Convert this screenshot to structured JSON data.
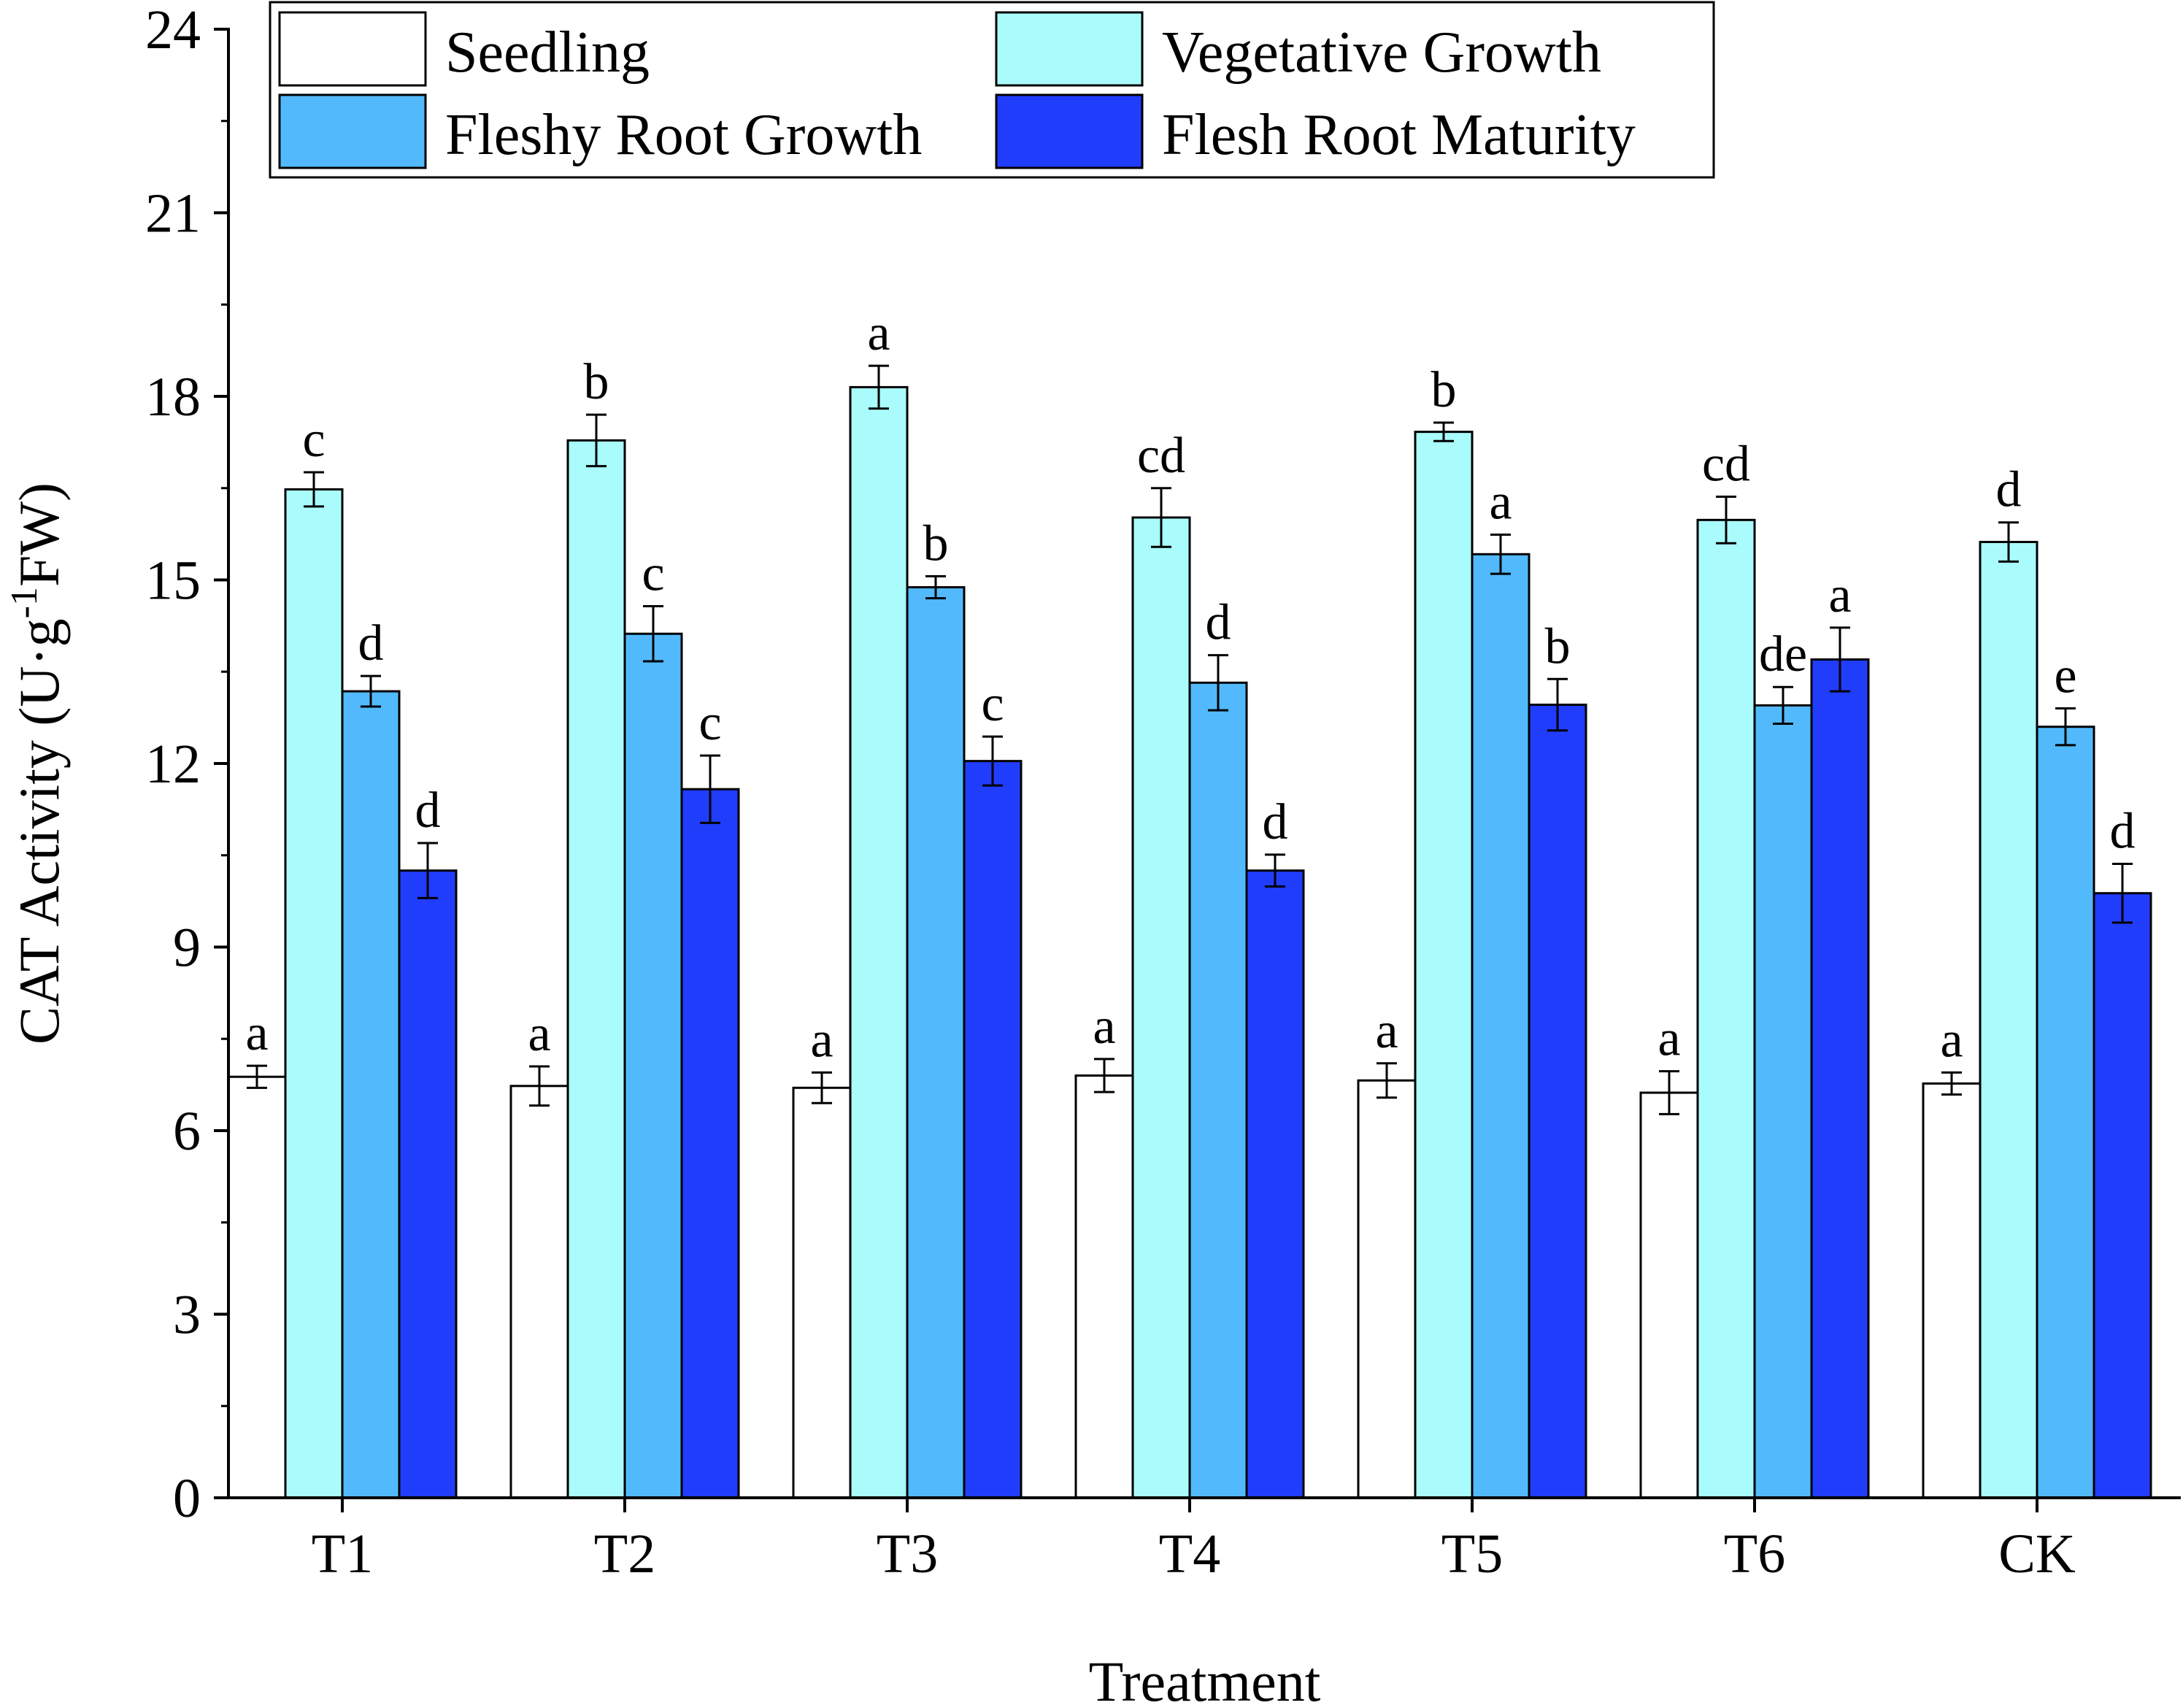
{
  "chart_data": {
    "type": "bar",
    "title": "",
    "xlabel": "Treatment",
    "ylabel": {
      "main": "CAT Activity (U·g",
      "superscript": "-1",
      "tail": "FW)"
    },
    "ylim": [
      0,
      24
    ],
    "yticks": [
      "0",
      "3",
      "6",
      "9",
      "12",
      "15",
      "18",
      "21",
      "24"
    ],
    "categories": [
      "T1",
      "T2",
      "T3",
      "T4",
      "T5",
      "T6",
      "CK"
    ],
    "legend_position": "top",
    "series": [
      {
        "name": "Seedling",
        "color": "#ffffff",
        "values": [
          6.88,
          6.73,
          6.7,
          6.9,
          6.82,
          6.62,
          6.77
        ],
        "errors": [
          0.18,
          0.32,
          0.25,
          0.27,
          0.28,
          0.35,
          0.18
        ],
        "labels": [
          "a",
          "a",
          "a",
          "a",
          "a",
          "a",
          "a"
        ]
      },
      {
        "name": "Vegetative Growth",
        "color": "#aafcfc",
        "values": [
          16.48,
          17.28,
          18.15,
          16.02,
          17.42,
          15.98,
          15.62
        ],
        "errors": [
          0.28,
          0.42,
          0.35,
          0.48,
          0.15,
          0.38,
          0.32
        ],
        "labels": [
          "c",
          "b",
          "a",
          "cd",
          "b",
          "cd",
          "d"
        ]
      },
      {
        "name": "Fleshy Root Growth",
        "color": "#52bafc",
        "values": [
          13.18,
          14.12,
          14.88,
          13.32,
          15.42,
          12.95,
          12.6
        ],
        "errors": [
          0.25,
          0.45,
          0.18,
          0.45,
          0.32,
          0.3,
          0.3
        ],
        "labels": [
          "d",
          "c",
          "b",
          "d",
          "a",
          "de",
          "e"
        ]
      },
      {
        "name": "Flesh Root Maturity",
        "color": "#213dfc",
        "values": [
          10.25,
          11.58,
          12.04,
          10.25,
          12.96,
          13.7,
          9.88
        ],
        "errors": [
          0.45,
          0.55,
          0.4,
          0.26,
          0.42,
          0.52,
          0.48
        ],
        "labels": [
          "d",
          "c",
          "c",
          "d",
          "b",
          "a",
          "d"
        ]
      }
    ]
  }
}
